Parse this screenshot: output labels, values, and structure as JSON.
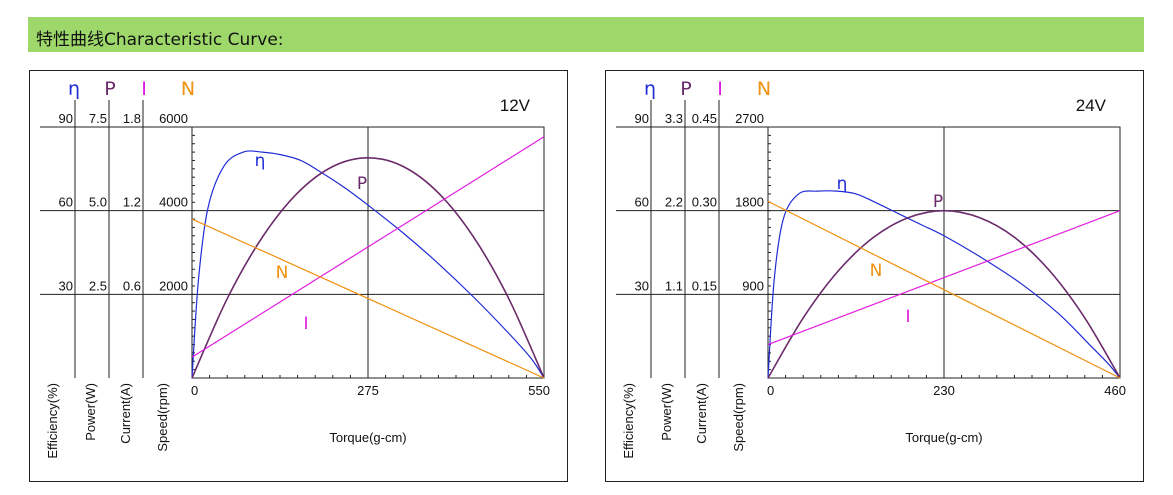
{
  "header": {
    "title": "特性曲线Characteristic Curve:"
  },
  "colors": {
    "banner": "#9ed86a",
    "efficiency": "#1f2bd6",
    "power": "#6a2a6a",
    "current": "#e21be0",
    "speed": "#f0900f",
    "grid": "#222222"
  },
  "chart_data": [
    {
      "type": "line",
      "title": "12V",
      "xlabel": "Torque(g-cm)",
      "xlim": [
        0,
        550
      ],
      "x_ticks": [
        "0",
        "275",
        "550"
      ],
      "axis_headers": {
        "efficiency": "η",
        "power": "P",
        "current": "I",
        "speed": "N"
      },
      "axis_labels": [
        "Efficiency(%)",
        "Power(W)",
        "Current(A)",
        "Speed(rpm)"
      ],
      "axis_ticks": {
        "efficiency": [
          "90",
          "60",
          "30"
        ],
        "power": [
          "7.5",
          "5.0",
          "2.5"
        ],
        "current": [
          "1.8",
          "1.2",
          "0.6"
        ],
        "speed": [
          "6000",
          "4000",
          "2000"
        ]
      },
      "axis_max": {
        "efficiency": 90,
        "power": 7.5,
        "current": 1.8,
        "speed": 6000
      },
      "series": [
        {
          "name": "η",
          "axis": "efficiency",
          "x": [
            0,
            10,
            25,
            50,
            80,
            110,
            140,
            170,
            200,
            240,
            275,
            330,
            385,
            440,
            495,
            530,
            550
          ],
          "y": [
            0,
            35,
            61,
            76,
            81,
            81,
            80,
            78,
            74,
            68,
            62,
            52,
            41,
            29,
            16,
            7,
            0
          ]
        },
        {
          "name": "P",
          "axis": "power",
          "x": [
            0,
            55,
            110,
            165,
            220,
            275,
            330,
            385,
            440,
            495,
            550
          ],
          "y": [
            0,
            2.37,
            4.21,
            5.53,
            6.32,
            6.58,
            6.32,
            5.53,
            4.21,
            2.37,
            0
          ]
        },
        {
          "name": "I",
          "axis": "current",
          "x": [
            0,
            550
          ],
          "y": [
            0.15,
            1.73
          ]
        },
        {
          "name": "N",
          "axis": "speed",
          "x": [
            0,
            550
          ],
          "y": [
            3800,
            0
          ]
        }
      ],
      "grid": true
    },
    {
      "type": "line",
      "title": "24V",
      "xlabel": "Torque(g-cm)",
      "xlim": [
        0,
        460
      ],
      "x_ticks": [
        "0",
        "230",
        "460"
      ],
      "axis_headers": {
        "efficiency": "η",
        "power": "P",
        "current": "I",
        "speed": "N"
      },
      "axis_labels": [
        "Efficiency(%)",
        "Power(W)",
        "Current(A)",
        "Speed(rpm)"
      ],
      "axis_ticks": {
        "efficiency": [
          "90",
          "60",
          "30"
        ],
        "power": [
          "3.3",
          "2.2",
          "1.1"
        ],
        "current": [
          "0.45",
          "0.30",
          "0.15"
        ],
        "speed": [
          "2700",
          "1800",
          "900"
        ]
      },
      "axis_max": {
        "efficiency": 90,
        "power": 3.3,
        "current": 0.45,
        "speed": 2700
      },
      "series": [
        {
          "name": "η",
          "axis": "efficiency",
          "x": [
            0,
            8,
            20,
            40,
            65,
            90,
            115,
            140,
            170,
            200,
            230,
            280,
            330,
            380,
            420,
            445,
            460
          ],
          "y": [
            0,
            35,
            57,
            66,
            67,
            67,
            66,
            63,
            59,
            55,
            51,
            43,
            34,
            23,
            12,
            5,
            0
          ]
        },
        {
          "name": "P",
          "axis": "power",
          "x": [
            0,
            46,
            92,
            138,
            184,
            230,
            276,
            322,
            368,
            414,
            460
          ],
          "y": [
            0,
            0.79,
            1.41,
            1.85,
            2.11,
            2.2,
            2.11,
            1.85,
            1.41,
            0.79,
            0
          ]
        },
        {
          "name": "I",
          "axis": "current",
          "x": [
            0,
            460
          ],
          "y": [
            0.06,
            0.3
          ]
        },
        {
          "name": "N",
          "axis": "speed",
          "x": [
            0,
            460
          ],
          "y": [
            1900,
            0
          ]
        }
      ],
      "grid": true
    }
  ]
}
